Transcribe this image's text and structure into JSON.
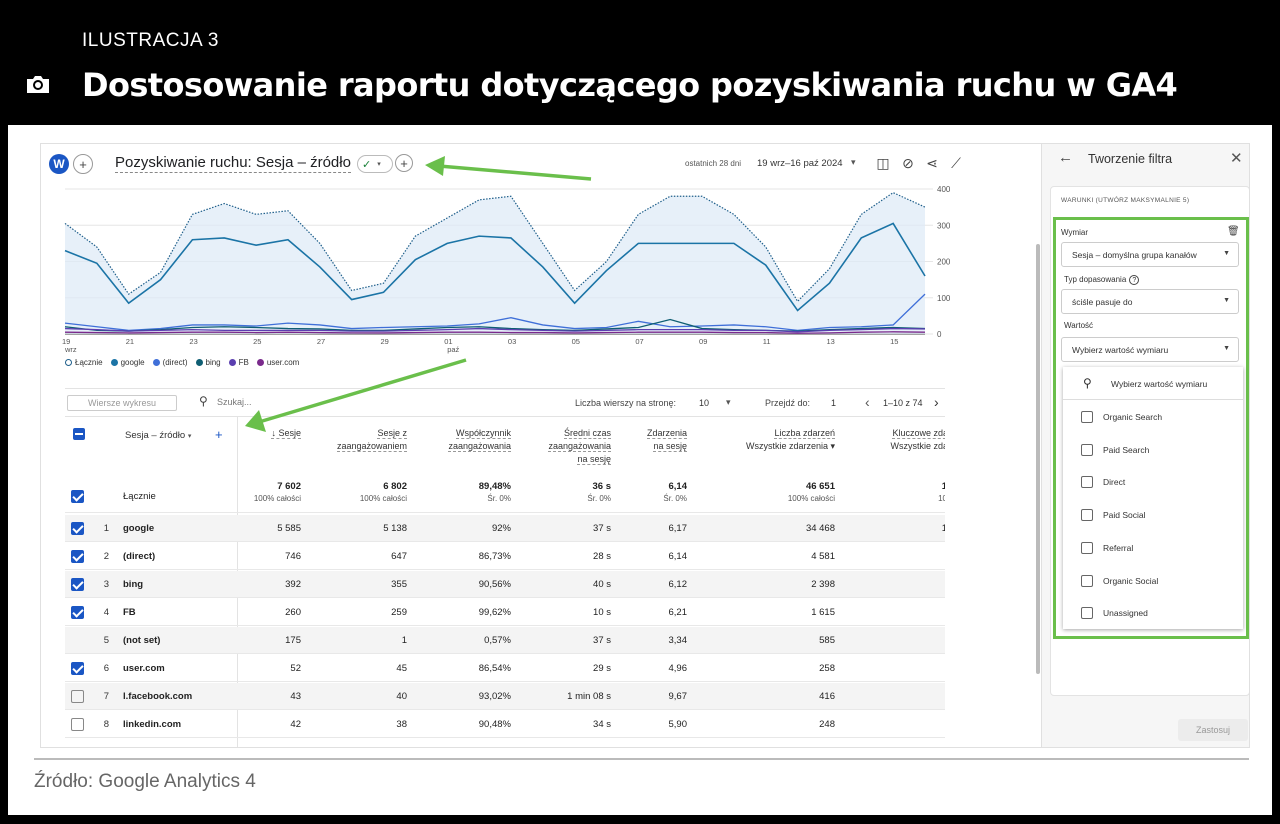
{
  "figure": {
    "label": "ILUSTRACJA 3",
    "title": "Dostosowanie raportu dotyczącego pozyskiwania ruchu w GA4",
    "source": "Źródło: Google Analytics 4"
  },
  "colors": {
    "ga_blue": "#1a56c4",
    "green_highlight": "#6abf4b",
    "series_total": "#1f5f8b",
    "series_google": "#1b74a6",
    "series_direct": "#3f6fd8",
    "series_bing": "#0f5e73",
    "series_fb": "#5b3fb0",
    "series_user": "#7a2a8c"
  },
  "toolbar": {
    "avatar": "W",
    "add": "+",
    "report_title": "Pozyskiwanie ruchu: Sesja – źródło",
    "status_icon": "check-circle-icon",
    "date_preset": "ostatnich 28 dni",
    "date_range": "19 wrz–16 paź 2024",
    "icons": [
      "compare-icon",
      "insights-icon",
      "share-icon",
      "trend-icon",
      "edit-icon"
    ]
  },
  "chart_data": {
    "type": "line",
    "x": [
      "19 wrz",
      "20",
      "21",
      "22",
      "23",
      "24",
      "25",
      "26",
      "27",
      "28",
      "29",
      "30",
      "01 paź",
      "02",
      "03",
      "04",
      "05",
      "06",
      "07",
      "08",
      "09",
      "10",
      "11",
      "12",
      "13",
      "14",
      "15",
      "16"
    ],
    "x_ticks": [
      "19\nwrz",
      "21",
      "23",
      "25",
      "27",
      "29",
      "01\npaź",
      "03",
      "05",
      "07",
      "09",
      "11",
      "13",
      "15"
    ],
    "y_ticks": [
      "0",
      "100",
      "200",
      "300",
      "400"
    ],
    "ylim": [
      0,
      400
    ],
    "series": [
      {
        "name": "Łącznie",
        "values": [
          305,
          240,
          110,
          170,
          330,
          360,
          330,
          340,
          250,
          120,
          140,
          270,
          320,
          370,
          380,
          250,
          120,
          200,
          330,
          380,
          380,
          330,
          240,
          90,
          180,
          330,
          390,
          350
        ]
      },
      {
        "name": "google",
        "values": [
          230,
          195,
          85,
          150,
          260,
          265,
          245,
          260,
          185,
          95,
          115,
          205,
          250,
          270,
          265,
          185,
          85,
          175,
          250,
          250,
          250,
          250,
          190,
          65,
          140,
          265,
          305,
          160
        ]
      },
      {
        "name": "(direct)",
        "values": [
          30,
          20,
          10,
          15,
          25,
          25,
          22,
          30,
          25,
          15,
          18,
          20,
          22,
          28,
          45,
          25,
          15,
          18,
          35,
          20,
          22,
          25,
          20,
          10,
          18,
          20,
          25,
          110
        ]
      },
      {
        "name": "bing",
        "values": [
          20,
          10,
          8,
          12,
          18,
          20,
          18,
          15,
          14,
          10,
          10,
          14,
          18,
          20,
          15,
          12,
          10,
          14,
          18,
          40,
          15,
          12,
          10,
          8,
          12,
          15,
          18,
          15
        ]
      },
      {
        "name": "FB",
        "values": [
          15,
          12,
          8,
          10,
          12,
          10,
          10,
          10,
          10,
          8,
          8,
          10,
          12,
          15,
          12,
          10,
          8,
          10,
          12,
          12,
          12,
          10,
          10,
          6,
          10,
          12,
          15,
          14
        ]
      },
      {
        "name": "user.com",
        "values": [
          5,
          4,
          3,
          4,
          5,
          5,
          4,
          5,
          4,
          3,
          3,
          4,
          5,
          5,
          4,
          4,
          3,
          4,
          5,
          5,
          5,
          4,
          4,
          2,
          3,
          5,
          6,
          5
        ]
      }
    ]
  },
  "legend": [
    "Łącznie",
    "google",
    "(direct)",
    "bing",
    "FB",
    "user.com"
  ],
  "table_bar": {
    "rows_search_placeholder": "Wiersze wykresu",
    "search_placeholder": "Szukaj...",
    "rows_per_page_label": "Liczba wierszy na stronę:",
    "rows_per_page": "10",
    "goto_label": "Przejdź do:",
    "goto_value": "1",
    "page_range": "1–10 z 74"
  },
  "table": {
    "dimension_header": "Sesja – źródło",
    "columns": [
      {
        "label": "↓ Sesje"
      },
      {
        "label": "Sesje z",
        "label2": "zaangażowaniem"
      },
      {
        "label": "Współczynnik",
        "label2": "zaangażowania"
      },
      {
        "label": "Średni czas",
        "label2": "zaangażowania",
        "label3": "na sesję"
      },
      {
        "label": "Zdarzenia",
        "label2": "na sesję"
      },
      {
        "label": "Liczba zdarzeń",
        "label2": "Wszystkie zdarzenia ▾"
      },
      {
        "label": "Kluczowe zdar",
        "label2": "Wszystkie zdar"
      }
    ],
    "totals": {
      "label": "Łącznie",
      "values": [
        "7 602",
        "6 802",
        "89,48%",
        "36 s",
        "6,14",
        "46 651",
        "1"
      ],
      "subs": [
        "100% całości",
        "100% całości",
        "Śr. 0%",
        "Śr. 0%",
        "Śr. 0%",
        "100% całości",
        "10"
      ]
    },
    "rows": [
      {
        "n": "1",
        "name": "google",
        "checked": true,
        "values": [
          "5 585",
          "5 138",
          "92%",
          "37 s",
          "6,17",
          "34 468",
          "1"
        ]
      },
      {
        "n": "2",
        "name": "(direct)",
        "checked": true,
        "values": [
          "746",
          "647",
          "86,73%",
          "28 s",
          "6,14",
          "4 581",
          ""
        ]
      },
      {
        "n": "3",
        "name": "bing",
        "checked": true,
        "values": [
          "392",
          "355",
          "90,56%",
          "40 s",
          "6,12",
          "2 398",
          ""
        ]
      },
      {
        "n": "4",
        "name": "FB",
        "checked": true,
        "values": [
          "260",
          "259",
          "99,62%",
          "10 s",
          "6,21",
          "1 615",
          ""
        ]
      },
      {
        "n": "5",
        "name": "(not set)",
        "checked": null,
        "values": [
          "175",
          "1",
          "0,57%",
          "37 s",
          "3,34",
          "585",
          ""
        ]
      },
      {
        "n": "6",
        "name": "user.com",
        "checked": true,
        "values": [
          "52",
          "45",
          "86,54%",
          "29 s",
          "4,96",
          "258",
          ""
        ]
      },
      {
        "n": "7",
        "name": "l.facebook.com",
        "checked": false,
        "values": [
          "43",
          "40",
          "93,02%",
          "1 min 08 s",
          "9,67",
          "416",
          ""
        ]
      },
      {
        "n": "8",
        "name": "linkedin.com",
        "checked": false,
        "values": [
          "42",
          "38",
          "90,48%",
          "34 s",
          "5,90",
          "248",
          ""
        ]
      }
    ]
  },
  "panel": {
    "title": "Tworzenie filtra",
    "conditions_label": "WARUNKI (UTWÓRZ MAKSYMALNIE 5)",
    "dimension_label": "Wymiar",
    "dimension_value": "Sesja – domyślna grupa kanałów",
    "match_type_label": "Typ dopasowania",
    "match_type_value": "ściśle pasuje do",
    "value_label": "Wartość",
    "value_placeholder": "Wybierz wartość wymiaru",
    "dropdown_search": "Wybierz wartość wymiaru",
    "options": [
      "Organic Search",
      "Paid Search",
      "Direct",
      "Paid Social",
      "Referral",
      "Organic Social",
      "Unassigned"
    ],
    "apply": "Zastosuj"
  }
}
